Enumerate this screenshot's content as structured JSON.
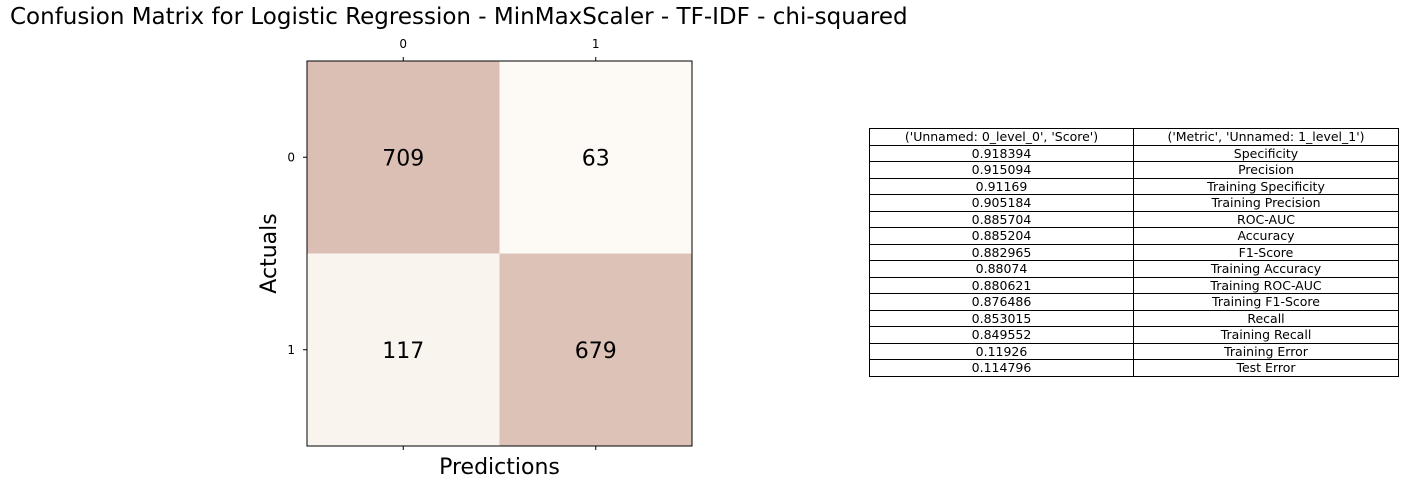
{
  "title": "Confusion Matrix for Logistic Regression - MinMaxScaler - TF-IDF - chi-squared",
  "chart_data": [
    {
      "type": "heatmap",
      "xlabel": "Predictions",
      "ylabel": "Actuals",
      "x_categories": [
        "0",
        "1"
      ],
      "y_categories": [
        "0",
        "1"
      ],
      "values": [
        [
          709,
          63
        ],
        [
          117,
          679
        ]
      ],
      "colors": {
        "high": "#dbbfb4",
        "low": "#fdf9f4"
      }
    },
    {
      "type": "table",
      "columns": [
        "('Unnamed: 0_level_0', 'Score')",
        "('Metric', 'Unnamed: 1_level_1')"
      ],
      "rows": [
        [
          "0.918394",
          "Specificity"
        ],
        [
          "0.915094",
          "Precision"
        ],
        [
          "0.91169",
          "Training Specificity"
        ],
        [
          "0.905184",
          "Training Precision"
        ],
        [
          "0.885704",
          "ROC-AUC"
        ],
        [
          "0.885204",
          "Accuracy"
        ],
        [
          "0.882965",
          "F1-Score"
        ],
        [
          "0.88074",
          "Training Accuracy"
        ],
        [
          "0.880621",
          "Training ROC-AUC"
        ],
        [
          "0.876486",
          "Training F1-Score"
        ],
        [
          "0.853015",
          "Recall"
        ],
        [
          "0.849552",
          "Training Recall"
        ],
        [
          "0.11926",
          "Training Error"
        ],
        [
          "0.114796",
          "Test Error"
        ]
      ]
    }
  ]
}
